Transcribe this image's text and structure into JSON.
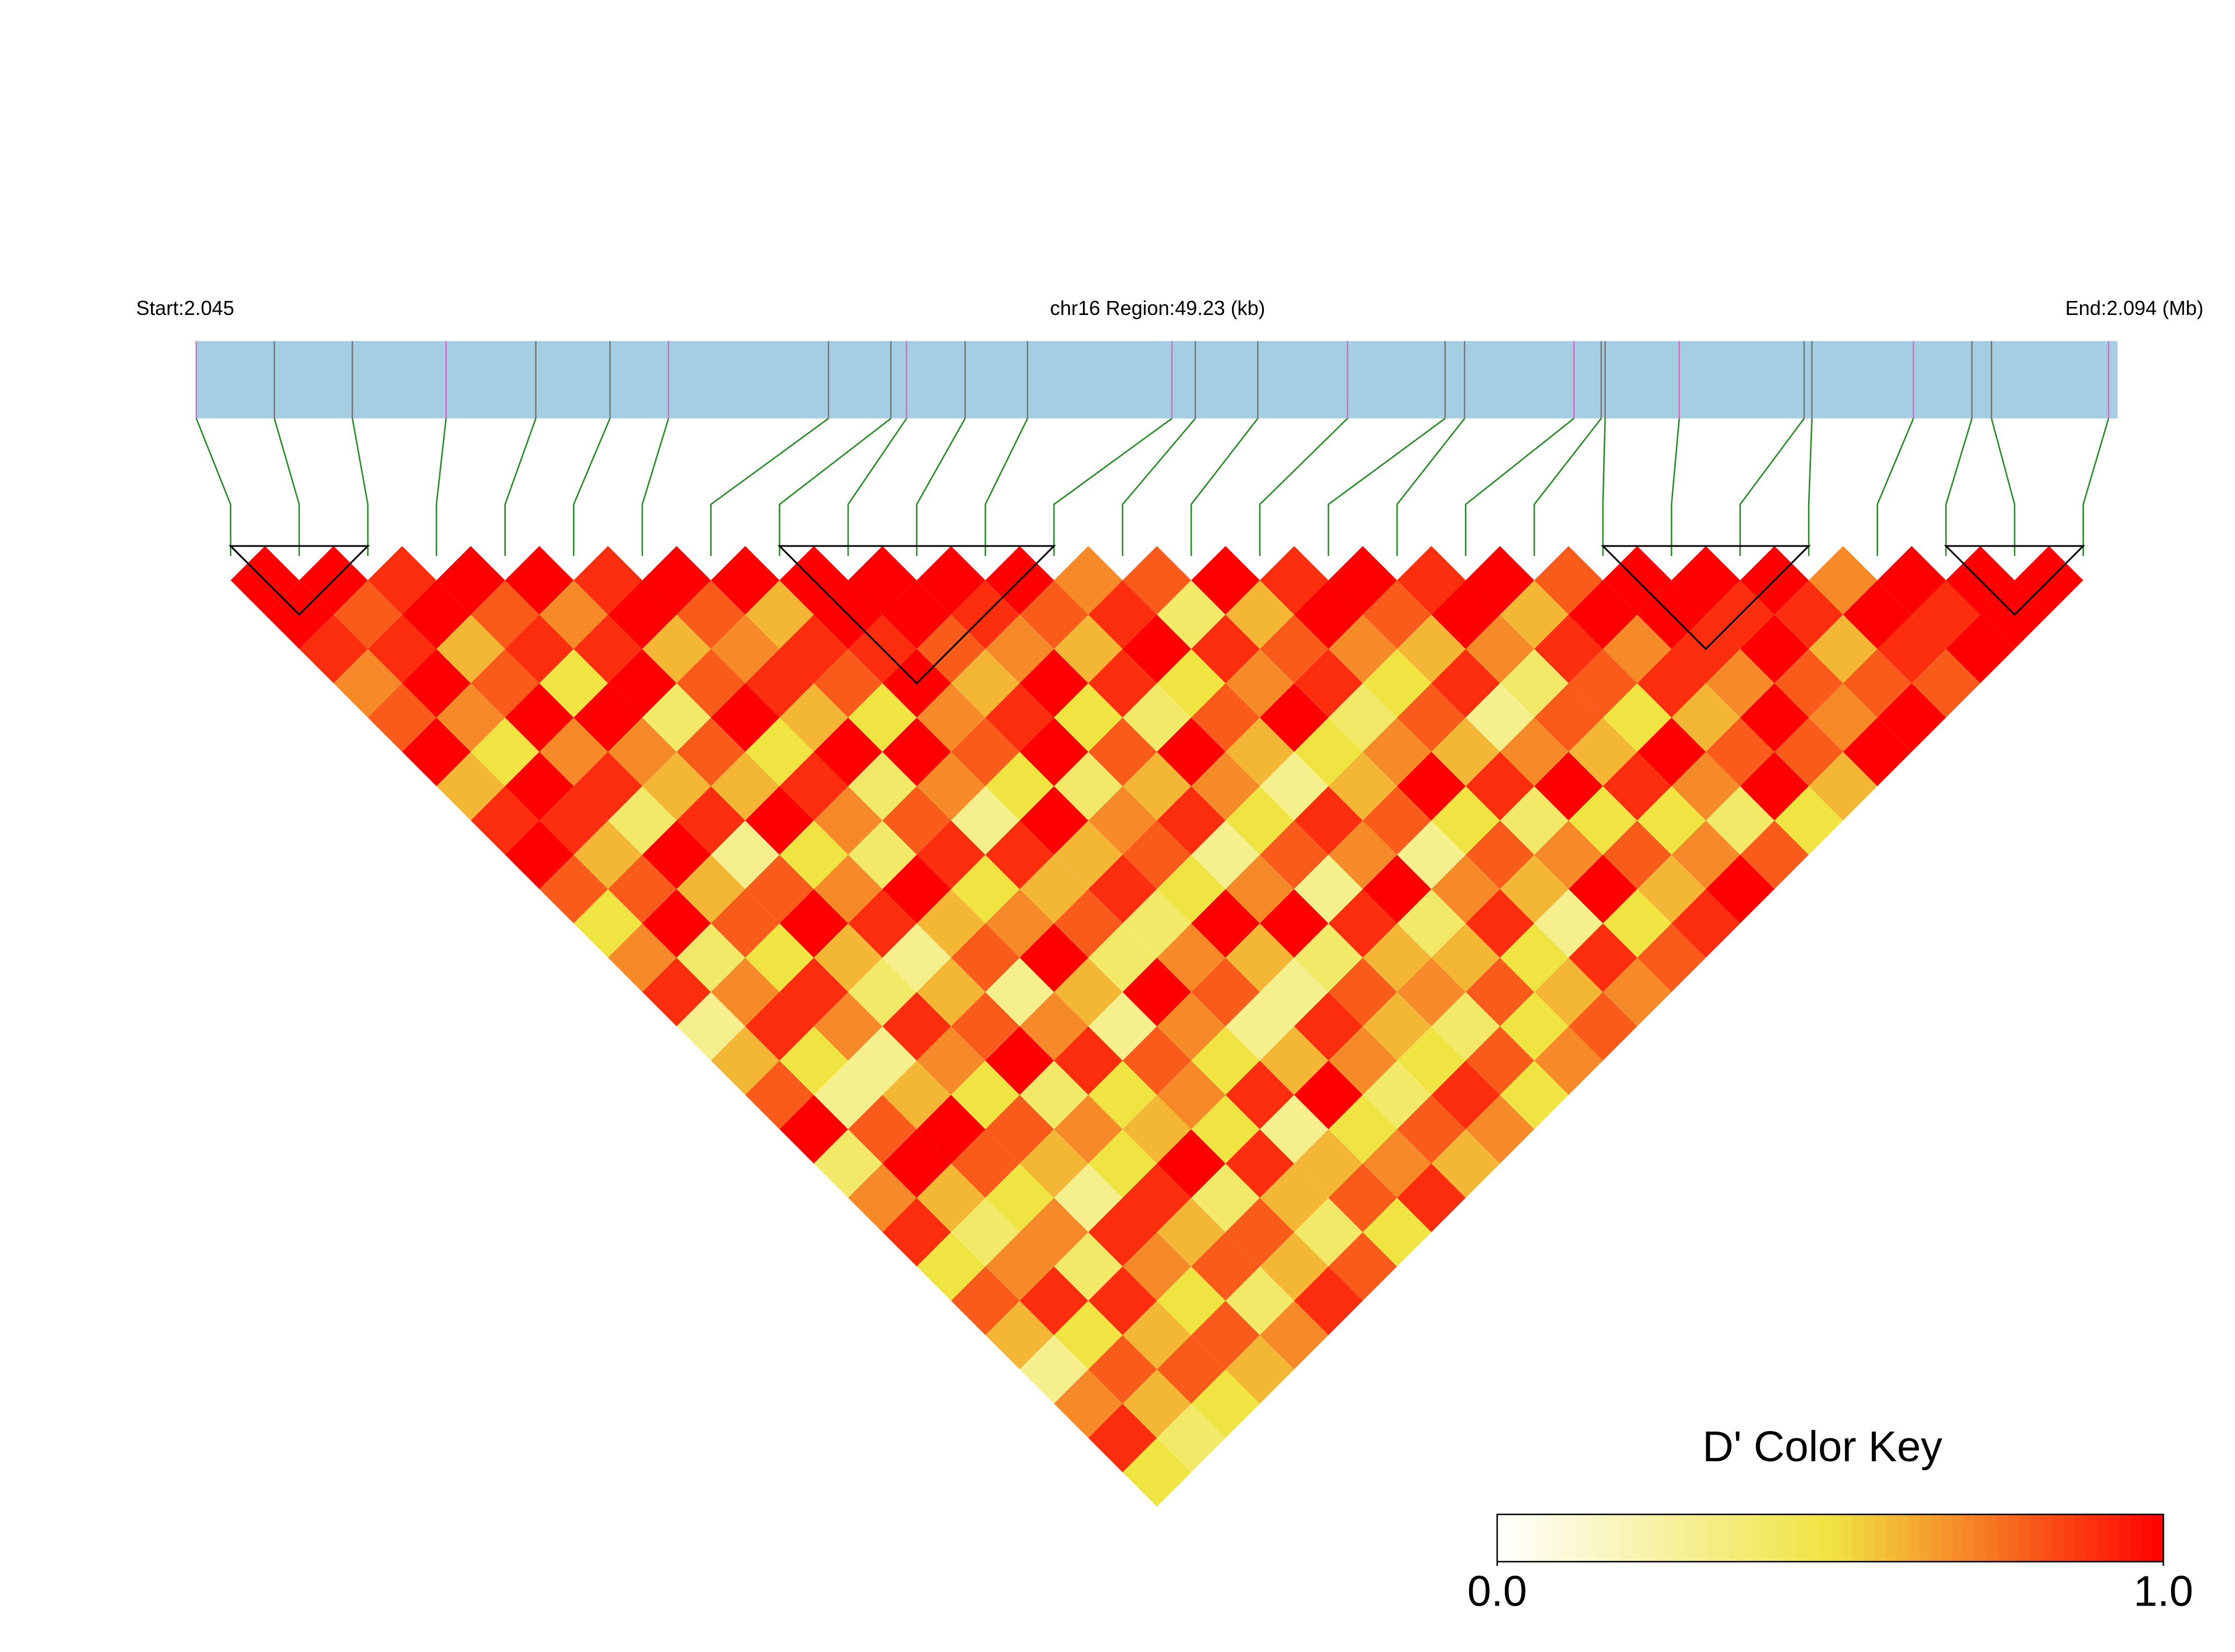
{
  "chart_data": {
    "type": "ld-heatmap",
    "start_label": "Start:2.045",
    "region_label": "chr16 Region:49.23 (kb)",
    "end_label": "End:2.094 (Mb)",
    "xlim": [
      2.045,
      2.09423
    ],
    "positions": [
      2.045,
      2.047,
      2.049,
      2.0514,
      2.0537,
      2.0556,
      2.0571,
      2.0612,
      2.0628,
      2.0632,
      2.0647,
      2.0663,
      2.07,
      2.0706,
      2.0722,
      2.0745,
      2.077,
      2.0775,
      2.0803,
      2.081,
      2.0811,
      2.083,
      2.0862,
      2.0864,
      2.089,
      2.0905,
      2.091,
      2.094
    ],
    "ld": [
      [
        1,
        1,
        0.9,
        0.7,
        0.8,
        1,
        0.6,
        0.9,
        1,
        0.8,
        0.5,
        0.7,
        0.9,
        0.3,
        0.6,
        0.8,
        1,
        0.4,
        0.7,
        0.9,
        0.5,
        0.8,
        0.6,
        0.3,
        0.7,
        0.9,
        0.5
      ],
      [
        1,
        0.8,
        0.9,
        1,
        0.7,
        0.5,
        1,
        0.9,
        0.6,
        0.8,
        1,
        0.4,
        0.7,
        0.9,
        0.5,
        0.3,
        0.8,
        1,
        0.6,
        0.4,
        0.7,
        0.9,
        0.5,
        0.8,
        0.6,
        0.4
      ],
      [
        0.9,
        1,
        0.6,
        0.8,
        1,
        0.7,
        0.9,
        0.4,
        1,
        0.6,
        0.8,
        0.5,
        0.9,
        0.7,
        0.3,
        0.6,
        1,
        0.8,
        0.5,
        0.7,
        0.4,
        0.9,
        0.6,
        0.8,
        0.5
      ],
      [
        1,
        0.8,
        0.9,
        0.5,
        1,
        0.7,
        0.6,
        0.9,
        0.3,
        0.8,
        1,
        0.6,
        0.4,
        0.9,
        0.7,
        0.5,
        0.8,
        0.6,
        0.3,
        0.9,
        0.7,
        0.5,
        0.8,
        0.6
      ],
      [
        1,
        0.7,
        0.9,
        1,
        0.4,
        0.8,
        0.6,
        1,
        0.5,
        0.7,
        0.9,
        0.3,
        0.6,
        0.8,
        1,
        0.4,
        0.7,
        0.5,
        0.9,
        0.6,
        0.8,
        0.4,
        0.7
      ],
      [
        0.9,
        1,
        0.6,
        0.8,
        1,
        0.5,
        0.9,
        0.7,
        0.4,
        1,
        0.6,
        0.8,
        0.3,
        0.7,
        0.9,
        0.5,
        0.6,
        1,
        0.4,
        0.8,
        0.6,
        0.9
      ],
      [
        1,
        0.8,
        0.7,
        0.9,
        0.6,
        1,
        0.4,
        0.8,
        0.9,
        0.5,
        0.7,
        1,
        0.6,
        0.3,
        0.8,
        0.7,
        0.5,
        0.9,
        0.6,
        0.4,
        0.8
      ],
      [
        1,
        0.6,
        0.9,
        0.8,
        0.5,
        1,
        0.7,
        0.3,
        0.9,
        0.6,
        0.8,
        0.4,
        1,
        0.7,
        0.5,
        0.9,
        0.3,
        0.6,
        0.8,
        0.5
      ],
      [
        1,
        1,
        0.9,
        1,
        0.7,
        0.8,
        0.5,
        1,
        0.6,
        0.9,
        0.4,
        0.7,
        0.8,
        0.3,
        0.6,
        1,
        0.5,
        0.7,
        0.9
      ],
      [
        1,
        1,
        0.8,
        0.6,
        0.9,
        1,
        0.4,
        0.7,
        0.8,
        0.5,
        1,
        0.6,
        0.3,
        0.9,
        0.7,
        0.4,
        0.8,
        0.6
      ],
      [
        1,
        0.9,
        0.7,
        1,
        0.5,
        0.8,
        0.6,
        0.9,
        0.3,
        0.7,
        1,
        0.4,
        0.8,
        0.6,
        0.5,
        0.9,
        0.7
      ],
      [
        1,
        0.8,
        0.6,
        0.9,
        0.4,
        1,
        0.7,
        0.5,
        0.8,
        0.3,
        0.9,
        0.6,
        0.7,
        0.4,
        0.8,
        0.5
      ],
      [
        0.7,
        0.9,
        1,
        0.5,
        0.8,
        0.6,
        0.3,
        0.9,
        0.7,
        1,
        0.4,
        0.6,
        0.8,
        0.5,
        0.7
      ],
      [
        0.8,
        0.4,
        0.9,
        0.7,
        1,
        0.5,
        0.6,
        0.8,
        0.3,
        0.7,
        0.9,
        0.5,
        0.6,
        0.8
      ],
      [
        1,
        0.6,
        0.8,
        0.9,
        0.4,
        0.7,
        1,
        0.5,
        0.8,
        0.6,
        0.3,
        0.9,
        0.7
      ],
      [
        0.9,
        1,
        0.7,
        0.5,
        0.8,
        0.6,
        0.9,
        0.4,
        0.7,
        1,
        0.5,
        0.8
      ],
      [
        1,
        0.8,
        0.6,
        0.9,
        0.3,
        0.7,
        1,
        0.5,
        0.8,
        0.6,
        0.9
      ],
      [
        0.9,
        1,
        0.7,
        0.4,
        0.8,
        0.6,
        0.9,
        0.5,
        0.7,
        1
      ],
      [
        1,
        0.6,
        0.9,
        0.8,
        0.5,
        1,
        0.7,
        0.4,
        0.8
      ],
      [
        0.8,
        1,
        0.7,
        0.9,
        0.6,
        0.8,
        1,
        0.5
      ],
      [
        1,
        1,
        0.9,
        0.7,
        1,
        0.8,
        0.6
      ],
      [
        1,
        0.9,
        1,
        0.8,
        0.7,
        1
      ],
      [
        1,
        0.9,
        0.6,
        0.8,
        1
      ],
      [
        0.7,
        1,
        0.9,
        0.8
      ],
      [
        1,
        0.9,
        1
      ],
      [
        1,
        1
      ],
      [
        1
      ]
    ],
    "blocks": [
      [
        0,
        2
      ],
      [
        8,
        12
      ],
      [
        20,
        23
      ],
      [
        25,
        27
      ]
    ],
    "colorscale": [
      "#ffffff",
      "#f0e442",
      "#ff0000"
    ],
    "key_title": "D' Color Key",
    "key_ticks": [
      {
        "value": 0,
        "label": "0.0"
      },
      {
        "value": 1,
        "label": "1.0"
      }
    ],
    "bar_color": "#a6cee3",
    "connector_color": "#228b22"
  }
}
